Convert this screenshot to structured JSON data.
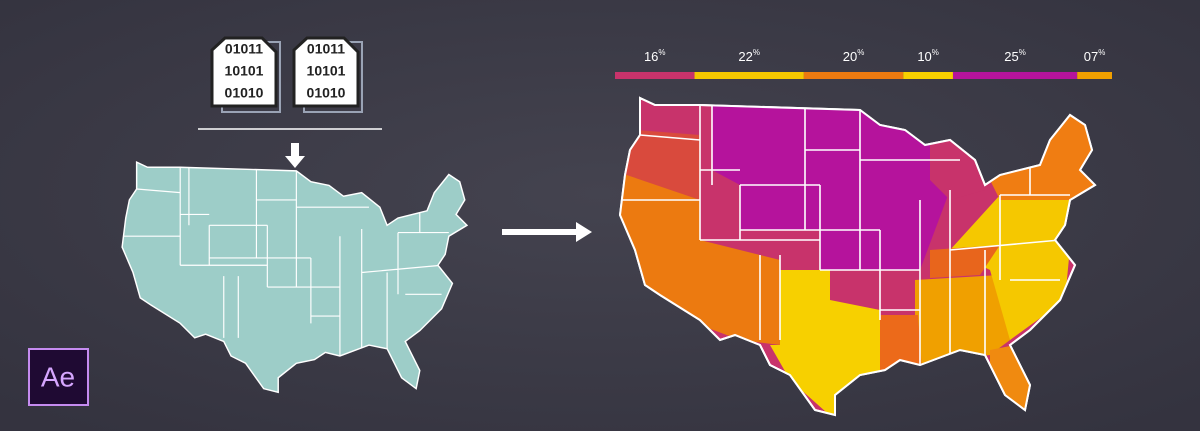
{
  "files": [
    {
      "lines": [
        "01011",
        "10101",
        "01010"
      ]
    },
    {
      "lines": [
        "01011",
        "10101",
        "01010"
      ]
    }
  ],
  "legend": {
    "segments": [
      {
        "value": 16,
        "label": "16",
        "unit": "%",
        "color": "#c8336b"
      },
      {
        "value": 22,
        "label": "22",
        "unit": "%",
        "color": "#f5c800"
      },
      {
        "value": 20,
        "label": "20",
        "unit": "%",
        "color": "#ec7a10"
      },
      {
        "value": 10,
        "label": "10",
        "unit": "%",
        "color": "#f7d000"
      },
      {
        "value": 25,
        "label": "25",
        "unit": "%",
        "color": "#b5139c"
      },
      {
        "value": 7,
        "label": "07",
        "unit": "%",
        "color": "#f0a000"
      }
    ]
  },
  "logo": {
    "text": "Ae"
  }
}
